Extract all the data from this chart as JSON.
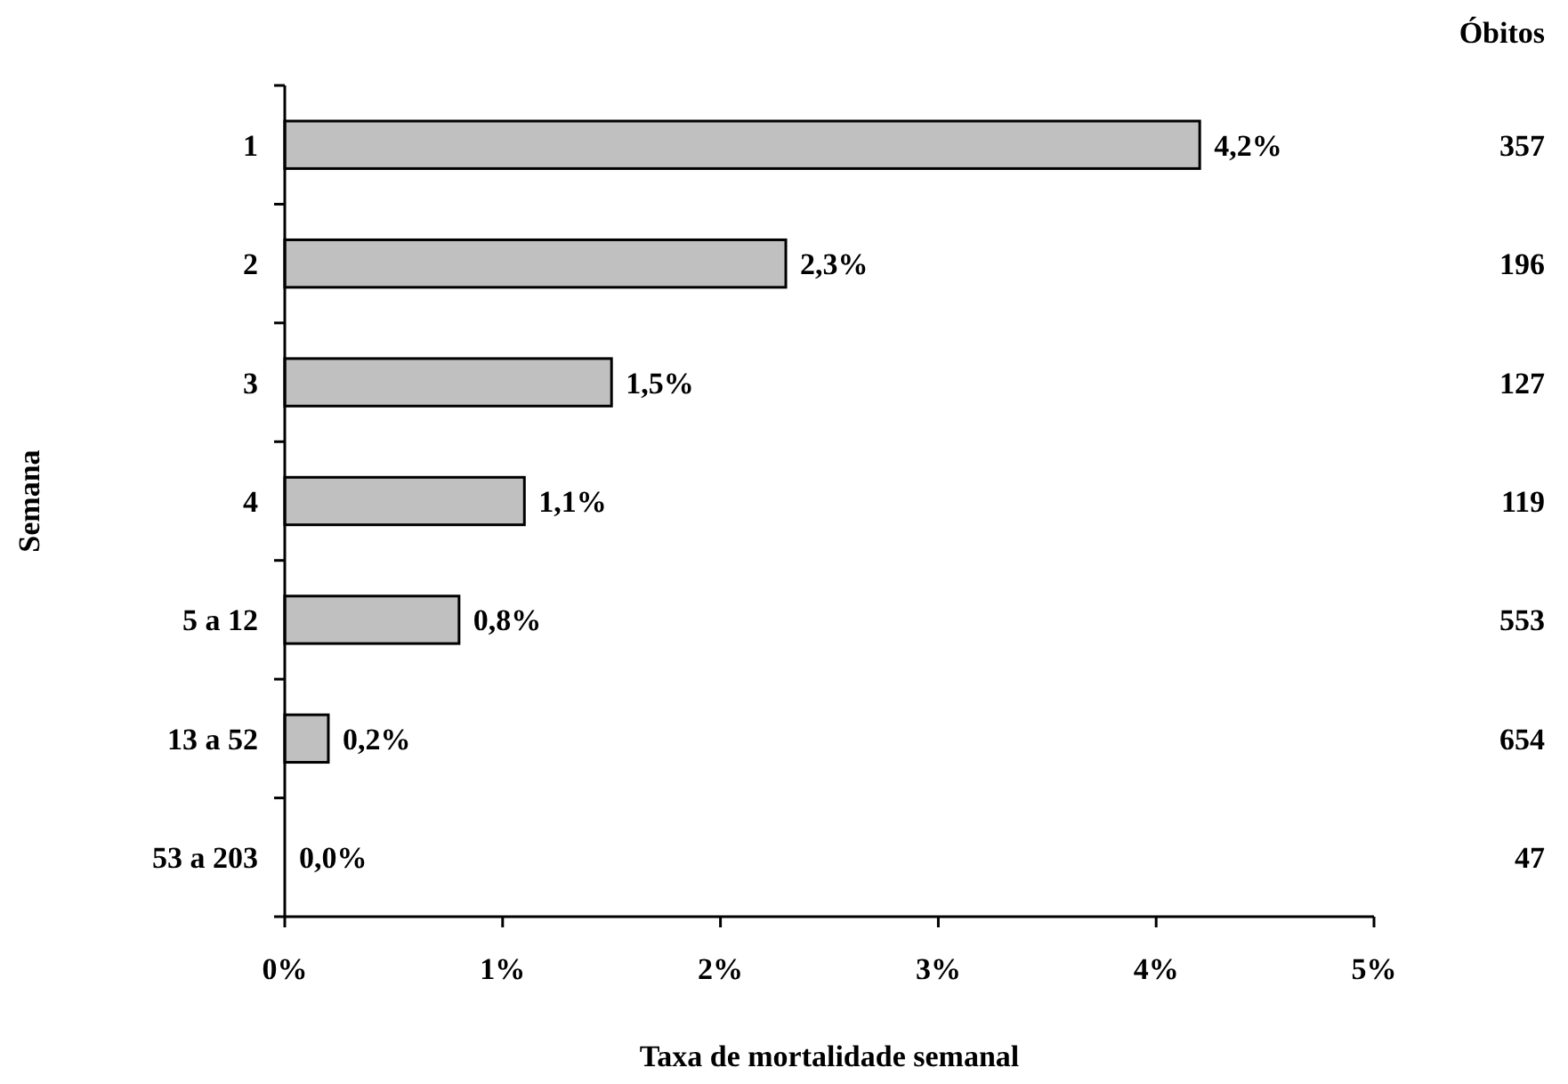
{
  "chart_data": {
    "type": "bar",
    "orientation": "horizontal",
    "categories": [
      "1",
      "2",
      "3",
      "4",
      "5 a 12",
      "13 a 52",
      "53 a 203"
    ],
    "values": [
      4.2,
      2.3,
      1.5,
      1.1,
      0.8,
      0.2,
      0.0
    ],
    "value_labels": [
      "4,2%",
      "2,3%",
      "1,5%",
      "1,1%",
      "0,8%",
      "0,2%",
      "0,0%"
    ],
    "color": "#c0c0c0",
    "xlim": [
      0,
      5
    ],
    "xticks": [
      {
        "value": 0,
        "label": "0%"
      },
      {
        "value": 1,
        "label": "1%"
      },
      {
        "value": 2,
        "label": "2%"
      },
      {
        "value": 3,
        "label": "3%"
      },
      {
        "value": 4,
        "label": "4%"
      },
      {
        "value": 5,
        "label": "5%"
      }
    ],
    "xlabel": "Taxa de mortalidade semanal",
    "ylabel": "Semana",
    "annotations": [
      "Óbitos",
      "357",
      "196",
      "127",
      "119",
      "553",
      "654",
      "47"
    ]
  }
}
